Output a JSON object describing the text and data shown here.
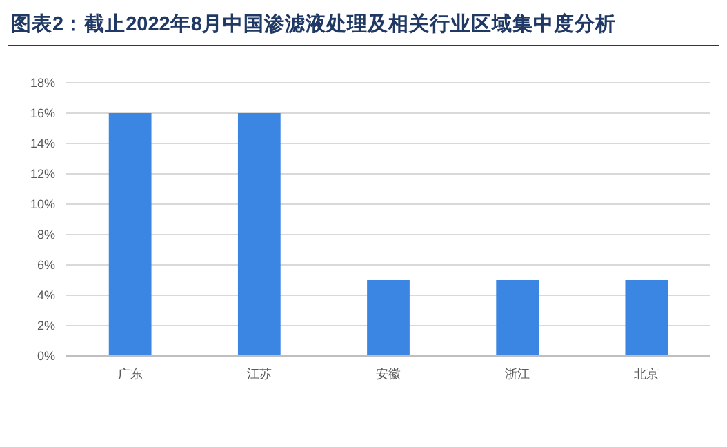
{
  "chart_data": {
    "type": "bar",
    "title": "图表2：截止2022年8月中国渗滤液处理及相关行业区域集中度分析",
    "categories": [
      "广东",
      "江苏",
      "安徽",
      "浙江",
      "北京"
    ],
    "values": [
      16,
      16,
      5,
      5,
      5
    ],
    "color": "#3b86e3",
    "ylim": [
      0,
      18
    ],
    "yticks": [
      {
        "value": 0,
        "label": "0%"
      },
      {
        "value": 2,
        "label": "2%"
      },
      {
        "value": 4,
        "label": "4%"
      },
      {
        "value": 6,
        "label": "6%"
      },
      {
        "value": 8,
        "label": "8%"
      },
      {
        "value": 10,
        "label": "10%"
      },
      {
        "value": 12,
        "label": "12%"
      },
      {
        "value": 14,
        "label": "14%"
      },
      {
        "value": 16,
        "label": "16%"
      },
      {
        "value": 18,
        "label": "18%"
      }
    ],
    "grid": "y"
  }
}
